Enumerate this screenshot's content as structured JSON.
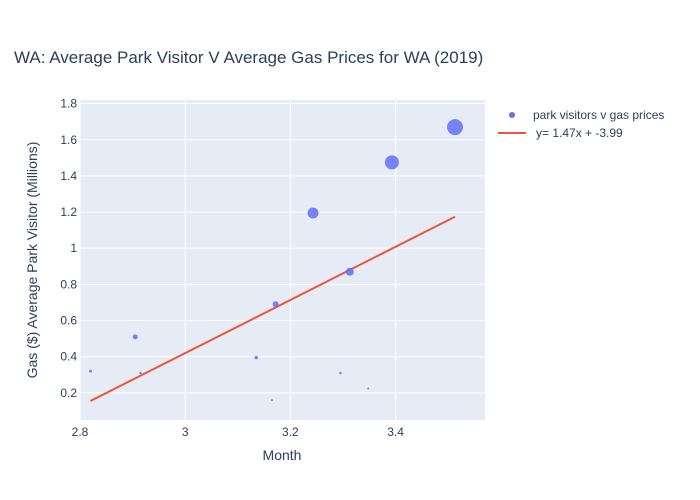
{
  "chart_data": {
    "type": "scatter",
    "title": "WA: Average Park Visitor V Average Gas Prices for WA (2019)",
    "xlabel": "Month",
    "ylabel": "Gas ($) Average Park Visitor (Millions)",
    "xlim": [
      2.8,
      3.57
    ],
    "ylim": [
      0.05,
      1.82
    ],
    "x_ticks": [
      2.8,
      3,
      3.2,
      3.4
    ],
    "x_tick_labels": [
      "2.8",
      "3",
      "3.2",
      "3.4"
    ],
    "y_ticks": [
      0.2,
      0.4,
      0.6,
      0.8,
      1,
      1.2,
      1.4,
      1.6,
      1.8
    ],
    "y_tick_labels": [
      "0.2",
      "0.4",
      "0.6",
      "0.8",
      "1",
      "1.2",
      "1.4",
      "1.6",
      "1.8"
    ],
    "grid": true,
    "legend_position": "top-right",
    "plot_background": "#e5ecf6",
    "series": [
      {
        "name": "park visitors v gas prices",
        "kind": "markers",
        "color": "#636efa",
        "points": [
          {
            "x": 2.82,
            "y": 0.32,
            "size": 2
          },
          {
            "x": 2.905,
            "y": 0.51,
            "size": 4
          },
          {
            "x": 2.915,
            "y": 0.31,
            "size": 1.5
          },
          {
            "x": 3.135,
            "y": 0.395,
            "size": 2.5
          },
          {
            "x": 3.165,
            "y": 0.16,
            "size": 1
          },
          {
            "x": 3.172,
            "y": 0.69,
            "size": 5
          },
          {
            "x": 3.243,
            "y": 1.195,
            "size": 10
          },
          {
            "x": 3.295,
            "y": 0.31,
            "size": 1.5
          },
          {
            "x": 3.313,
            "y": 0.87,
            "size": 7
          },
          {
            "x": 3.348,
            "y": 0.225,
            "size": 1
          },
          {
            "x": 3.393,
            "y": 1.475,
            "size": 13
          },
          {
            "x": 3.513,
            "y": 1.67,
            "size": 15
          }
        ]
      },
      {
        "name": "y= 1.47x + -3.99",
        "kind": "line",
        "color": "#ef553b",
        "points": [
          {
            "x": 2.82,
            "y": 0.1554
          },
          {
            "x": 3.513,
            "y": 1.1741
          }
        ]
      }
    ]
  }
}
